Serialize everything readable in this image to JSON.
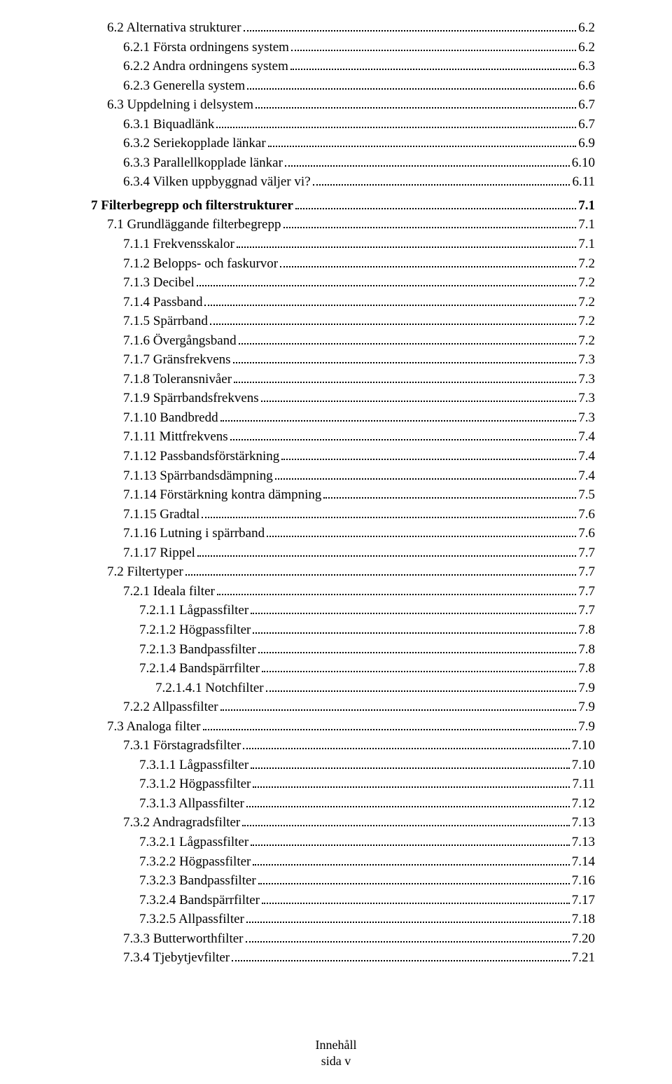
{
  "toc": [
    {
      "indent": 1,
      "label": "6.2 Alternativa strukturer",
      "page": "6.2",
      "chapter": false
    },
    {
      "indent": 2,
      "label": "6.2.1 Första ordningens system",
      "page": "6.2",
      "chapter": false
    },
    {
      "indent": 2,
      "label": "6.2.2 Andra ordningens system",
      "page": "6.3",
      "chapter": false
    },
    {
      "indent": 2,
      "label": "6.2.3 Generella system",
      "page": "6.6",
      "chapter": false
    },
    {
      "indent": 1,
      "label": "6.3 Uppdelning i delsystem",
      "page": "6.7",
      "chapter": false
    },
    {
      "indent": 2,
      "label": "6.3.1 Biquadlänk",
      "page": "6.7",
      "chapter": false
    },
    {
      "indent": 2,
      "label": "6.3.2 Seriekopplade länkar",
      "page": "6.9",
      "chapter": false
    },
    {
      "indent": 2,
      "label": "6.3.3 Parallellkopplade länkar",
      "page": "6.10",
      "chapter": false
    },
    {
      "indent": 2,
      "label": "6.3.4 Vilken uppbyggnad väljer vi?",
      "page": "6.11",
      "chapter": false
    },
    {
      "indent": 0,
      "label": "7 Filterbegrepp och filterstrukturer",
      "page": "7.1",
      "chapter": true
    },
    {
      "indent": 1,
      "label": "7.1 Grundläggande filterbegrepp",
      "page": "7.1",
      "chapter": false
    },
    {
      "indent": 2,
      "label": "7.1.1 Frekvensskalor",
      "page": "7.1",
      "chapter": false
    },
    {
      "indent": 2,
      "label": "7.1.2 Belopps- och faskurvor",
      "page": "7.2",
      "chapter": false
    },
    {
      "indent": 2,
      "label": "7.1.3 Decibel",
      "page": "7.2",
      "chapter": false
    },
    {
      "indent": 2,
      "label": "7.1.4 Passband",
      "page": "7.2",
      "chapter": false
    },
    {
      "indent": 2,
      "label": "7.1.5 Spärrband",
      "page": "7.2",
      "chapter": false
    },
    {
      "indent": 2,
      "label": "7.1.6 Övergångsband",
      "page": "7.2",
      "chapter": false
    },
    {
      "indent": 2,
      "label": "7.1.7  Gränsfrekvens",
      "page": "7.3",
      "chapter": false
    },
    {
      "indent": 2,
      "label": "7.1.8 Toleransnivåer",
      "page": "7.3",
      "chapter": false
    },
    {
      "indent": 2,
      "label": "7.1.9 Spärrbandsfrekvens",
      "page": "7.3",
      "chapter": false
    },
    {
      "indent": 2,
      "label": "7.1.10 Bandbredd",
      "page": "7.3",
      "chapter": false
    },
    {
      "indent": 2,
      "label": "7.1.11 Mittfrekvens",
      "page": "7.4",
      "chapter": false
    },
    {
      "indent": 2,
      "label": "7.1.12 Passbandsförstärkning",
      "page": "7.4",
      "chapter": false
    },
    {
      "indent": 2,
      "label": "7.1.13 Spärrbandsdämpning",
      "page": "7.4",
      "chapter": false
    },
    {
      "indent": 2,
      "label": "7.1.14 Förstärkning kontra dämpning",
      "page": "7.5",
      "chapter": false
    },
    {
      "indent": 2,
      "label": "7.1.15 Gradtal",
      "page": "7.6",
      "chapter": false
    },
    {
      "indent": 2,
      "label": "7.1.16 Lutning i spärrband",
      "page": "7.6",
      "chapter": false
    },
    {
      "indent": 2,
      "label": "7.1.17 Rippel",
      "page": "7.7",
      "chapter": false
    },
    {
      "indent": 1,
      "label": "7.2 Filtertyper",
      "page": "7.7",
      "chapter": false
    },
    {
      "indent": 2,
      "label": "7.2.1 Ideala filter",
      "page": "7.7",
      "chapter": false
    },
    {
      "indent": 3,
      "label": "7.2.1.1 Lågpassfilter",
      "page": "7.7",
      "chapter": false
    },
    {
      "indent": 3,
      "label": "7.2.1.2 Högpassfilter",
      "page": "7.8",
      "chapter": false
    },
    {
      "indent": 3,
      "label": "7.2.1.3 Bandpassfilter",
      "page": "7.8",
      "chapter": false
    },
    {
      "indent": 3,
      "label": "7.2.1.4 Bandspärrfilter",
      "page": "7.8",
      "chapter": false
    },
    {
      "indent": 4,
      "label": "7.2.1.4.1 Notchfilter",
      "page": "7.9",
      "chapter": false
    },
    {
      "indent": 2,
      "label": "7.2.2 Allpassfilter",
      "page": "7.9",
      "chapter": false
    },
    {
      "indent": 1,
      "label": "7.3 Analoga filter",
      "page": "7.9",
      "chapter": false
    },
    {
      "indent": 2,
      "label": "7.3.1 Förstagradsfilter",
      "page": "7.10",
      "chapter": false
    },
    {
      "indent": 3,
      "label": "7.3.1.1 Lågpassfilter",
      "page": "7.10",
      "chapter": false
    },
    {
      "indent": 3,
      "label": "7.3.1.2 Högpassfilter",
      "page": "7.11",
      "chapter": false
    },
    {
      "indent": 3,
      "label": "7.3.1.3 Allpassfilter",
      "page": "7.12",
      "chapter": false
    },
    {
      "indent": 2,
      "label": "7.3.2 Andragradsfilter",
      "page": "7.13",
      "chapter": false
    },
    {
      "indent": 3,
      "label": "7.3.2.1 Lågpassfilter",
      "page": "7.13",
      "chapter": false
    },
    {
      "indent": 3,
      "label": "7.3.2.2 Högpassfilter",
      "page": "7.14",
      "chapter": false
    },
    {
      "indent": 3,
      "label": "7.3.2.3 Bandpassfilter",
      "page": "7.16",
      "chapter": false
    },
    {
      "indent": 3,
      "label": "7.3.2.4 Bandspärrfilter",
      "page": "7.17",
      "chapter": false
    },
    {
      "indent": 3,
      "label": "7.3.2.5 Allpassfilter",
      "page": "7.18",
      "chapter": false
    },
    {
      "indent": 2,
      "label": "7.3.3 Butterworthfilter",
      "page": "7.20",
      "chapter": false
    },
    {
      "indent": 2,
      "label": "7.3.4 Tjebytjevfilter",
      "page": "7.21",
      "chapter": false
    }
  ],
  "footer": {
    "line1": "Innehåll",
    "line2": "sida v"
  }
}
